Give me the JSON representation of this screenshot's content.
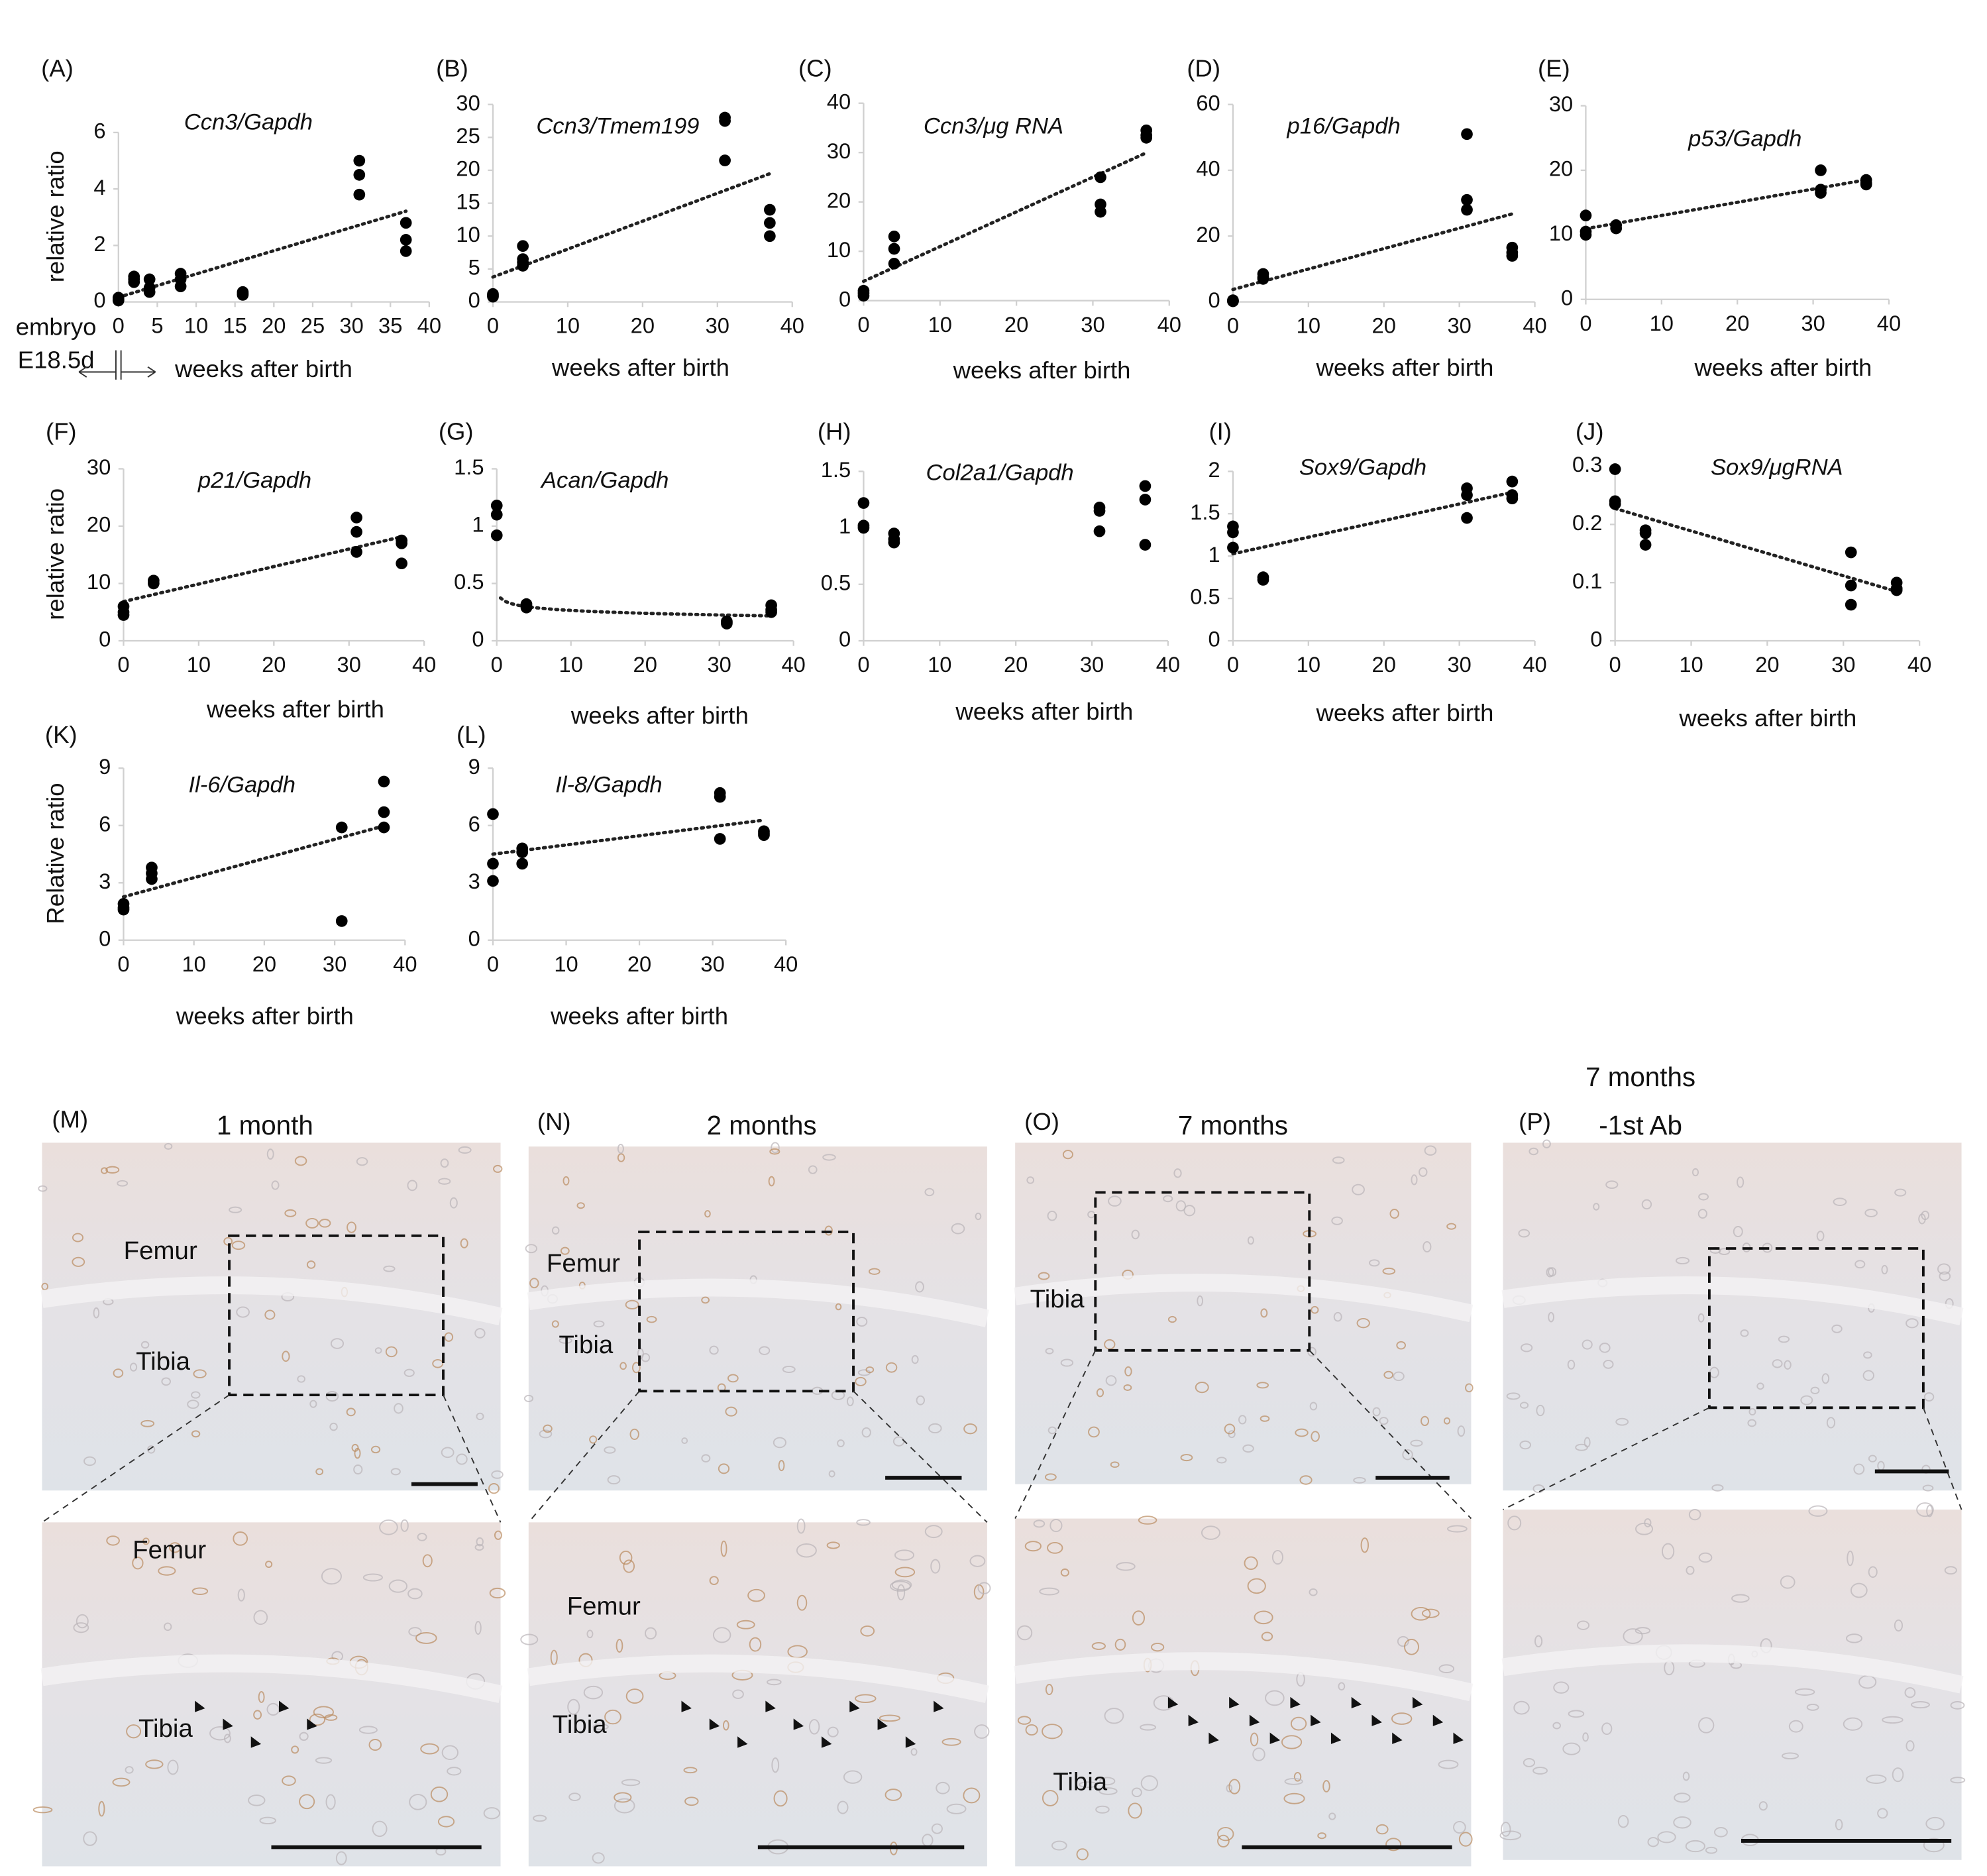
{
  "chart_data": [
    {
      "type": "scatter",
      "label": "(A)",
      "title": "Ccn3/Gapdh",
      "ylabel": "relative ratio",
      "xlabel": "weeks after birth",
      "annotations": [
        "embryo",
        "E18.5d"
      ],
      "color": "#000000",
      "trendline": "linear",
      "x": [
        0,
        0,
        0,
        2,
        2,
        2,
        4,
        4,
        4,
        8,
        8,
        8,
        16,
        16,
        16,
        31,
        31,
        31,
        37,
        37,
        37
      ],
      "y": [
        0.05,
        0.1,
        0.15,
        0.9,
        0.8,
        0.7,
        0.8,
        0.5,
        0.35,
        1.0,
        0.8,
        0.55,
        0.35,
        0.25,
        0.3,
        5.0,
        4.5,
        3.8,
        2.8,
        2.2,
        1.8
      ],
      "xlim": [
        0,
        40
      ],
      "ylim": [
        0,
        6
      ],
      "xticks": [
        0,
        5,
        10,
        15,
        20,
        25,
        30,
        35,
        40
      ],
      "yticks": [
        0,
        2,
        4,
        6
      ]
    },
    {
      "type": "scatter",
      "label": "(B)",
      "title": "Ccn3/Tmem199",
      "xlabel": "weeks after birth",
      "color": "#000000",
      "trendline": "linear",
      "x": [
        0,
        0,
        0,
        4,
        4,
        4,
        4,
        31,
        31,
        31,
        37,
        37,
        37
      ],
      "y": [
        1.2,
        0.8,
        1,
        8.5,
        6.5,
        5.5,
        6,
        28,
        27.5,
        21.5,
        14,
        12,
        10
      ],
      "xlim": [
        0,
        40
      ],
      "ylim": [
        0,
        30
      ],
      "xticks": [
        0,
        10,
        20,
        30,
        40
      ],
      "yticks": [
        0,
        5,
        10,
        15,
        20,
        25,
        30
      ]
    },
    {
      "type": "scatter",
      "label": "(C)",
      "title": "Ccn3/μg RNA",
      "xlabel": "weeks after birth",
      "color": "#000000",
      "trendline": "linear",
      "x": [
        0,
        0,
        0,
        4,
        4,
        4,
        31,
        31,
        31,
        37,
        37,
        37
      ],
      "y": [
        2,
        1,
        1.5,
        13,
        10.5,
        7.5,
        25,
        19.5,
        18,
        34.5,
        33.5,
        33
      ],
      "xlim": [
        0,
        40
      ],
      "ylim": [
        0,
        40
      ],
      "xticks": [
        0,
        10,
        20,
        30,
        40
      ],
      "yticks": [
        0,
        10,
        20,
        30,
        40
      ]
    },
    {
      "type": "scatter",
      "label": "(D)",
      "title": "p16/Gapdh",
      "xlabel": "weeks after birth",
      "color": "#000000",
      "trendline": "linear",
      "x": [
        0,
        0,
        0,
        4,
        4,
        4,
        31,
        31,
        31,
        37,
        37,
        37
      ],
      "y": [
        0.5,
        0.2,
        0.3,
        8.5,
        7.5,
        7,
        51,
        31,
        28,
        16.5,
        15,
        14
      ],
      "xlim": [
        0,
        40
      ],
      "ylim": [
        0,
        60
      ],
      "xticks": [
        0,
        10,
        20,
        30,
        40
      ],
      "yticks": [
        0,
        20,
        40,
        60
      ]
    },
    {
      "type": "scatter",
      "label": "(E)",
      "title": "p53/Gapdh",
      "xlabel": "weeks after birth",
      "color": "#000000",
      "trendline": "linear",
      "x": [
        0,
        0,
        0,
        4,
        4,
        31,
        31,
        31,
        37,
        37,
        37
      ],
      "y": [
        13,
        10,
        10.5,
        11.5,
        11,
        20,
        17,
        16.5,
        18.5,
        18,
        17.8
      ],
      "xlim": [
        0,
        40
      ],
      "ylim": [
        0,
        30
      ],
      "xticks": [
        0,
        10,
        20,
        30,
        40
      ],
      "yticks": [
        0,
        10,
        20,
        30
      ]
    },
    {
      "type": "scatter",
      "label": "(F)",
      "title": "p21/Gapdh",
      "ylabel": "relative ratio",
      "xlabel": "weeks after birth",
      "color": "#000000",
      "trendline": "linear",
      "x": [
        0,
        0,
        0,
        4,
        4,
        31,
        31,
        31,
        37,
        37,
        37
      ],
      "y": [
        6,
        5,
        4.5,
        10.5,
        10,
        21.5,
        19,
        15.5,
        17.5,
        17,
        13.5
      ],
      "xlim": [
        0,
        40
      ],
      "ylim": [
        0,
        30
      ],
      "xticks": [
        0,
        10,
        20,
        30,
        40
      ],
      "yticks": [
        0,
        10,
        20,
        30
      ]
    },
    {
      "type": "scatter",
      "label": "(G)",
      "title": "Acan/Gapdh",
      "xlabel": "weeks after birth",
      "color": "#000000",
      "trendline": "log",
      "x": [
        0,
        0,
        0,
        4,
        4,
        4,
        31,
        31,
        31,
        37,
        37,
        37
      ],
      "y": [
        1.18,
        1.1,
        0.92,
        0.32,
        0.3,
        0.29,
        0.17,
        0.15,
        0.16,
        0.31,
        0.27,
        0.25
      ],
      "xlim": [
        0,
        40
      ],
      "ylim": [
        0,
        1.5
      ],
      "xticks": [
        0,
        10,
        20,
        30,
        40
      ],
      "yticks": [
        0,
        0.5,
        1,
        1.5
      ]
    },
    {
      "type": "scatter",
      "label": "(H)",
      "title": "Col2a1/Gapdh",
      "xlabel": "weeks after birth",
      "color": "#000000",
      "x": [
        0,
        0,
        0,
        4,
        4,
        4,
        31,
        31,
        31,
        37,
        37,
        37
      ],
      "y": [
        1.22,
        1.02,
        1.0,
        0.95,
        0.9,
        0.87,
        1.18,
        1.15,
        0.97,
        1.37,
        1.25,
        0.85
      ],
      "xlim": [
        0,
        40
      ],
      "ylim": [
        0,
        1.5
      ],
      "xticks": [
        0,
        10,
        20,
        30,
        40
      ],
      "yticks": [
        0,
        0.5,
        1,
        1.5
      ]
    },
    {
      "type": "scatter",
      "label": "(I)",
      "title": "Sox9/Gapdh",
      "xlabel": "weeks after birth",
      "color": "#000000",
      "trendline": "linear",
      "x": [
        0,
        0,
        0,
        4,
        4,
        31,
        31,
        31,
        37,
        37,
        37
      ],
      "y": [
        1.35,
        1.28,
        1.1,
        0.75,
        0.72,
        1.8,
        1.72,
        1.45,
        1.88,
        1.72,
        1.68
      ],
      "xlim": [
        0,
        40
      ],
      "ylim": [
        0,
        2
      ],
      "xticks": [
        0,
        10,
        20,
        30,
        40
      ],
      "yticks": [
        0,
        0.5,
        1,
        1.5,
        2
      ]
    },
    {
      "type": "scatter",
      "label": "(J)",
      "title": "Sox9/μgRNA",
      "xlabel": "weeks after birth",
      "color": "#000000",
      "trendline": "linear",
      "x": [
        0,
        0,
        0,
        4,
        4,
        4,
        31,
        31,
        31,
        37,
        37,
        37
      ],
      "y": [
        0.295,
        0.24,
        0.235,
        0.19,
        0.185,
        0.165,
        0.152,
        0.095,
        0.062,
        0.1,
        0.09,
        0.087
      ],
      "xlim": [
        0,
        40
      ],
      "ylim": [
        0,
        0.3
      ],
      "xticks": [
        0,
        10,
        20,
        30,
        40
      ],
      "yticks": [
        0,
        0.1,
        0.2,
        0.3
      ]
    },
    {
      "type": "scatter",
      "label": "(K)",
      "title": "Il-6/Gapdh",
      "ylabel": "Relative ratio",
      "xlabel": "weeks after birth",
      "color": "#000000",
      "trendline": "linear",
      "x": [
        0,
        0,
        0,
        4,
        4,
        4,
        31,
        31,
        37,
        37,
        37
      ],
      "y": [
        1.9,
        1.7,
        1.6,
        3.8,
        3.5,
        3.2,
        5.9,
        1,
        8.3,
        6.7,
        5.9
      ],
      "xlim": [
        0,
        40
      ],
      "ylim": [
        0,
        9
      ],
      "xticks": [
        0,
        10,
        20,
        30,
        40
      ],
      "yticks": [
        0,
        3,
        6,
        9
      ]
    },
    {
      "type": "scatter",
      "label": "(L)",
      "title": "Il-8/Gapdh",
      "xlabel": "weeks after birth",
      "color": "#000000",
      "trendline": "linear",
      "x": [
        0,
        0,
        0,
        4,
        4,
        4,
        31,
        31,
        31,
        37,
        37,
        37
      ],
      "y": [
        6.6,
        4,
        3.1,
        4.8,
        4.6,
        4,
        7.7,
        7.5,
        5.3,
        5.7,
        5.6,
        5.5
      ],
      "xlim": [
        0,
        40
      ],
      "ylim": [
        0,
        9
      ],
      "xticks": [
        0,
        10,
        20,
        30,
        40
      ],
      "yticks": [
        0,
        3,
        6,
        9
      ]
    }
  ],
  "micrographs": [
    {
      "label": "(M)",
      "title_lines": [
        "1 month"
      ],
      "upper_labels": [
        "Femur",
        "Tibia"
      ],
      "lower_labels": [
        "Femur",
        "Tibia"
      ]
    },
    {
      "label": "(N)",
      "title_lines": [
        "2 months"
      ],
      "upper_labels": [
        "Femur",
        "Tibia"
      ],
      "lower_labels": [
        "Femur",
        "Tibia"
      ]
    },
    {
      "label": "(O)",
      "title_lines": [
        "7 months"
      ],
      "upper_labels": [
        "Tibia"
      ],
      "lower_labels": [
        "Tibia"
      ]
    },
    {
      "label": "(P)",
      "title_lines": [
        "7 months",
        "-1st Ab"
      ],
      "upper_labels": [],
      "lower_labels": []
    }
  ]
}
